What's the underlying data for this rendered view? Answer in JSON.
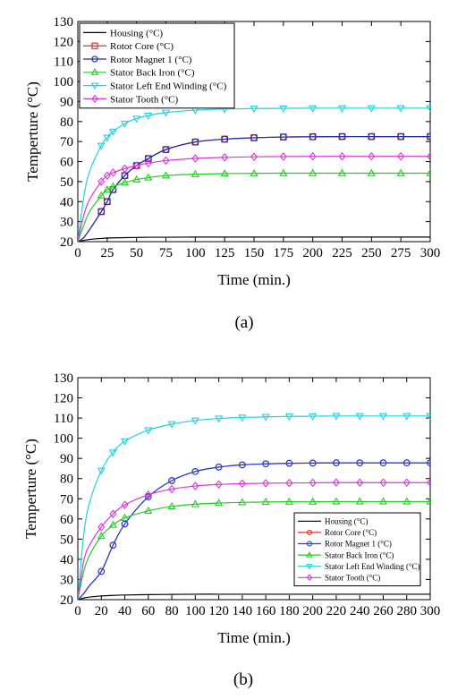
{
  "chart_data": [
    {
      "type": "line",
      "panel_label": "(a)",
      "xlabel": "Time (min.)",
      "ylabel": "Temperture (°C)",
      "xlim": [
        0,
        300
      ],
      "ylim": [
        20,
        130
      ],
      "xticks": [
        0,
        25,
        50,
        75,
        100,
        125,
        150,
        175,
        200,
        225,
        250,
        275,
        300
      ],
      "yticks": [
        20,
        30,
        40,
        50,
        60,
        70,
        80,
        90,
        100,
        110,
        120,
        130
      ],
      "legend_position": "top-left",
      "legend_style": "large",
      "x": [
        0,
        5,
        10,
        20,
        25,
        30,
        40,
        50,
        60,
        75,
        100,
        125,
        150,
        175,
        200,
        225,
        250,
        275,
        300
      ],
      "series": [
        {
          "name": "Housing (°C)",
          "color": "#000000",
          "marker": "none",
          "values": [
            20,
            20.6,
            21.1,
            21.6,
            21.8,
            21.9,
            22.0,
            22.1,
            22.2,
            22.2,
            22.3,
            22.3,
            22.3,
            22.3,
            22.3,
            22.3,
            22.3,
            22.3,
            22.3
          ]
        },
        {
          "name": "Rotor Core (°C)",
          "color": "#c0272d",
          "marker": "square",
          "values": [
            20,
            22,
            26,
            35,
            40,
            46,
            53,
            58,
            61.5,
            66,
            69.8,
            71.2,
            71.9,
            72.3,
            72.4,
            72.5,
            72.5,
            72.5,
            72.5
          ]
        },
        {
          "name": "Rotor Magnet 1 (°C)",
          "color": "#1a2ea8",
          "marker": "circle",
          "values": [
            20,
            22,
            26,
            35,
            40,
            46,
            53,
            58,
            61.5,
            66,
            69.8,
            71.2,
            71.9,
            72.3,
            72.4,
            72.5,
            72.5,
            72.5,
            72.5
          ]
        },
        {
          "name": "Stator Back Iron (°C)",
          "color": "#22cc22",
          "marker": "triangle-up",
          "values": [
            20,
            28,
            35,
            43,
            46,
            47.5,
            49.5,
            51,
            52,
            53,
            53.7,
            54,
            54.1,
            54.2,
            54.2,
            54.2,
            54.2,
            54.2,
            54.2
          ]
        },
        {
          "name": "Stator Left End Winding (°C)",
          "color": "#22d0e0",
          "marker": "triangle-down",
          "values": [
            20,
            42,
            55,
            68,
            72,
            75,
            79,
            81.5,
            83,
            84.5,
            85.7,
            86.3,
            86.5,
            86.6,
            86.7,
            86.7,
            86.7,
            86.7,
            86.7
          ]
        },
        {
          "name": "Stator Tooth (°C)",
          "color": "#d63ad6",
          "marker": "diamond",
          "values": [
            20,
            33,
            41,
            50,
            53,
            54.5,
            56.5,
            58,
            59.2,
            60.5,
            61.6,
            62.1,
            62.4,
            62.5,
            62.6,
            62.6,
            62.6,
            62.6,
            62.6
          ]
        }
      ]
    },
    {
      "type": "line",
      "panel_label": "(b)",
      "xlabel": "Time (min.)",
      "ylabel": "Temperture (°C)",
      "xlim": [
        0,
        300
      ],
      "ylim": [
        20,
        130
      ],
      "xticks": [
        0,
        20,
        40,
        60,
        80,
        100,
        120,
        140,
        160,
        180,
        200,
        220,
        240,
        260,
        280,
        300
      ],
      "yticks": [
        20,
        30,
        40,
        50,
        60,
        70,
        80,
        90,
        100,
        110,
        120,
        130
      ],
      "legend_position": "bottom-right",
      "legend_style": "small",
      "x": [
        0,
        5,
        10,
        20,
        30,
        40,
        60,
        80,
        100,
        120,
        140,
        160,
        180,
        200,
        220,
        240,
        260,
        280,
        300
      ],
      "series": [
        {
          "name": "Housing (°C)",
          "color": "#000000",
          "marker": "none",
          "values": [
            20,
            20.8,
            21.3,
            21.8,
            22.1,
            22.3,
            22.5,
            22.6,
            22.7,
            22.7,
            22.7,
            22.7,
            22.7,
            22.7,
            22.7,
            22.7,
            22.7,
            22.7,
            22.7
          ]
        },
        {
          "name": "Rotor Core (°C)",
          "color": "#e03030",
          "marker": "circle",
          "values": [
            20,
            23,
            27,
            34,
            47,
            57.5,
            71,
            79,
            83.5,
            85.7,
            86.8,
            87.3,
            87.6,
            87.7,
            87.8,
            87.8,
            87.8,
            87.8,
            87.8
          ]
        },
        {
          "name": "Rotor Magnet 1 (°C)",
          "color": "#2040d0",
          "marker": "circle",
          "values": [
            20,
            23,
            27,
            34,
            47,
            57.5,
            71,
            79,
            83.5,
            85.7,
            86.8,
            87.3,
            87.6,
            87.7,
            87.8,
            87.8,
            87.8,
            87.8,
            87.8
          ]
        },
        {
          "name": "Stator Back Iron (°C)",
          "color": "#22cc22",
          "marker": "triangle-up",
          "values": [
            20,
            34,
            42,
            51.5,
            57,
            60.5,
            64,
            66.2,
            67.3,
            67.9,
            68.2,
            68.4,
            68.5,
            68.5,
            68.6,
            68.6,
            68.6,
            68.6,
            68.6
          ]
        },
        {
          "name": "Stator Left End Winding (°C)",
          "color": "#22d0e0",
          "marker": "triangle-down",
          "values": [
            20,
            52,
            68,
            84,
            93,
            98.5,
            104,
            107,
            108.8,
            109.8,
            110.3,
            110.6,
            110.8,
            110.9,
            111,
            111,
            111,
            111,
            111
          ]
        },
        {
          "name": "Stator Tooth (°C)",
          "color": "#d63ad6",
          "marker": "diamond",
          "values": [
            20,
            39,
            47,
            56,
            62.5,
            67,
            72,
            74.8,
            76.3,
            77.1,
            77.5,
            77.7,
            77.8,
            77.9,
            78,
            78,
            78,
            78,
            78
          ]
        }
      ]
    }
  ]
}
